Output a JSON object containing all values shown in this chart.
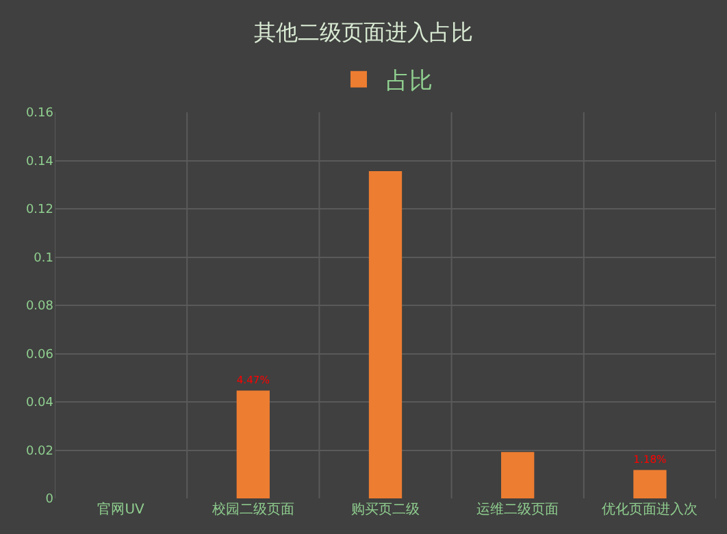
{
  "chart_data": {
    "type": "bar",
    "title": "其他二级页面进入占比",
    "categories": [
      "官网UV",
      "校园二级页面",
      "购买页二级",
      "运维二级页面",
      "优化页面进入次"
    ],
    "series": [
      {
        "name": "占比",
        "color": "#ed7d31",
        "values": [
          0,
          0.0447,
          0.1356,
          0.0192,
          0.0118
        ],
        "value_labels": [
          null,
          "4.47%",
          null,
          null,
          "1.18%"
        ]
      }
    ],
    "ylim": [
      0,
      0.16
    ],
    "yticks": [
      0,
      0.02,
      0.04,
      0.06,
      0.08,
      0.1,
      0.12,
      0.14,
      0.16
    ],
    "grid": true,
    "legend": "top"
  }
}
